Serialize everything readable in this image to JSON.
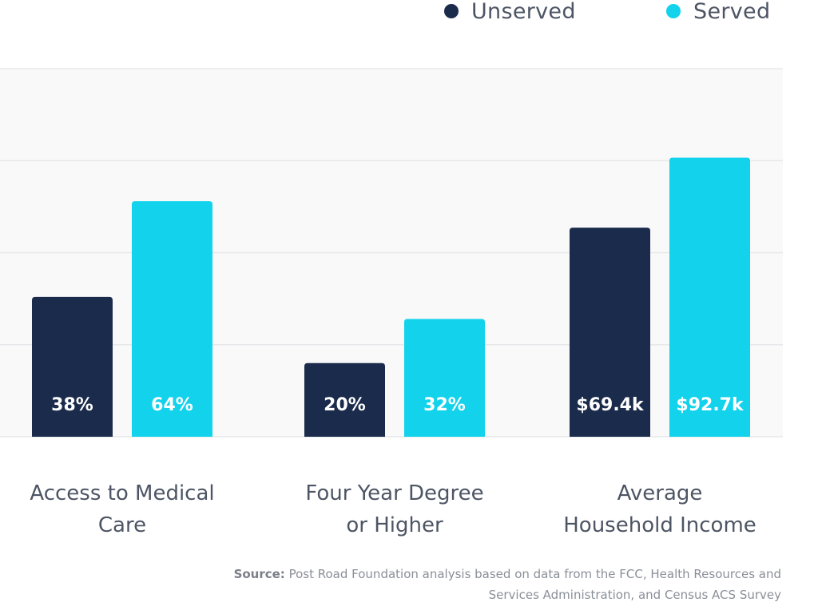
{
  "legend": {
    "unserved_label": "Unserved",
    "served_label": "Served"
  },
  "colors": {
    "unserved": "#1b2b4b",
    "served": "#12d2ec",
    "grid": "#e6e8ea",
    "panel": "#f9f9fa",
    "category_text": "#4d5564"
  },
  "source": {
    "prefix": "Source:",
    "text": "Post Road Foundation analysis based on data from the FCC, Health Resources and Services Administration, and Census ACS Survey"
  },
  "chart_data": {
    "type": "bar",
    "title": "",
    "categories": [
      [
        "Access to Medical",
        "Care"
      ],
      [
        "Four Year Degree",
        "or Higher"
      ],
      [
        "Average",
        "Household Income"
      ]
    ],
    "series": [
      {
        "name": "Unserved",
        "labels": [
          "38%",
          "20%",
          "$69.4k"
        ],
        "fractions": [
          0.38,
          0.2,
          0.568
        ]
      },
      {
        "name": "Served",
        "labels": [
          "64%",
          "32%",
          "$92.7k"
        ],
        "fractions": [
          0.64,
          0.32,
          0.758
        ]
      }
    ],
    "ylim": [
      0,
      1
    ],
    "grid": true,
    "legend_position": "top-right"
  }
}
